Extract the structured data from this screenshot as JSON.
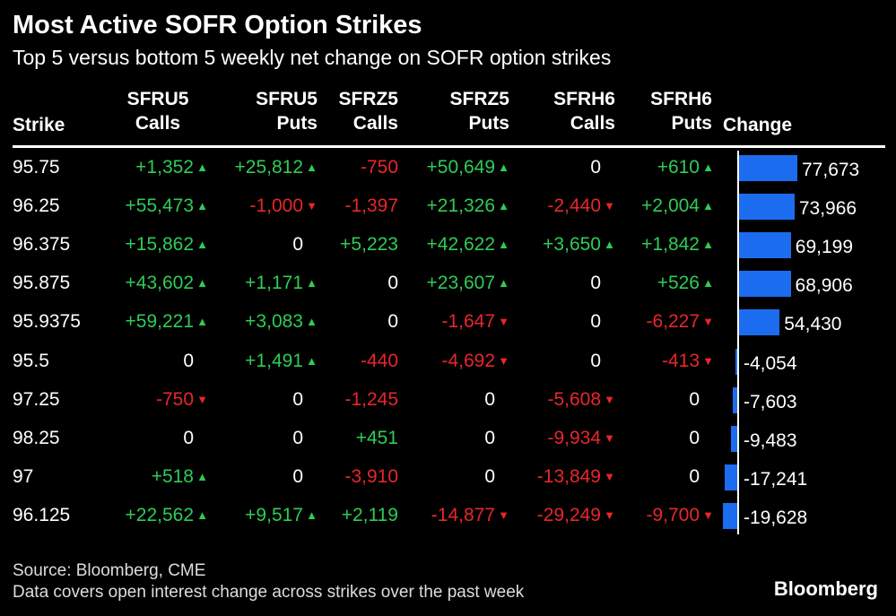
{
  "chart_data": {
    "type": "table",
    "title": "Most Active SOFR Option Strikes",
    "subtitle": "Top 5 versus bottom 5 weekly net change on SOFR option strikes",
    "columns": [
      {
        "line1": "",
        "line2": "Strike"
      },
      {
        "line1": "SFRU5",
        "line2": "Calls"
      },
      {
        "line1": "SFRU5",
        "line2": "Puts"
      },
      {
        "line1": "SFRZ5",
        "line2": "Calls"
      },
      {
        "line1": "SFRZ5",
        "line2": "Puts"
      },
      {
        "line1": "SFRH6",
        "line2": "Calls"
      },
      {
        "line1": "SFRH6",
        "line2": "Puts"
      },
      {
        "line1": "",
        "line2": "Change"
      }
    ],
    "rows": [
      {
        "strike": "95.75",
        "cells": [
          "+1,352",
          "+25,812",
          "-750",
          "+50,649",
          "0",
          "+610"
        ],
        "change": 77673,
        "change_label": "77,673"
      },
      {
        "strike": "96.25",
        "cells": [
          "+55,473",
          "-1,000",
          "-1,397",
          "+21,326",
          "-2,440",
          "+2,004"
        ],
        "change": 73966,
        "change_label": "73,966"
      },
      {
        "strike": "96.375",
        "cells": [
          "+15,862",
          "0",
          "+5,223",
          "+42,622",
          "+3,650",
          "+1,842"
        ],
        "change": 69199,
        "change_label": "69,199"
      },
      {
        "strike": "95.875",
        "cells": [
          "+43,602",
          "+1,171",
          "0",
          "+23,607",
          "0",
          "+526"
        ],
        "change": 68906,
        "change_label": "68,906"
      },
      {
        "strike": "95.9375",
        "cells": [
          "+59,221",
          "+3,083",
          "0",
          "-1,647",
          "0",
          "-6,227"
        ],
        "change": 54430,
        "change_label": "54,430"
      },
      {
        "strike": "95.5",
        "cells": [
          "0",
          "+1,491",
          "-440",
          "-4,692",
          "0",
          "-413"
        ],
        "change": -4054,
        "change_label": "-4,054"
      },
      {
        "strike": "97.25",
        "cells": [
          "-750",
          "0",
          "-1,245",
          "0",
          "-5,608",
          "0"
        ],
        "change": -7603,
        "change_label": "-7,603"
      },
      {
        "strike": "98.25",
        "cells": [
          "0",
          "0",
          "+451",
          "0",
          "-9,934",
          "0"
        ],
        "change": -9483,
        "change_label": "-9,483"
      },
      {
        "strike": "97",
        "cells": [
          "+518",
          "0",
          "-3,910",
          "0",
          "-13,849",
          "0"
        ],
        "change": -17241,
        "change_label": "-17,241"
      },
      {
        "strike": "96.125",
        "cells": [
          "+22,562",
          "+9,517",
          "+2,119",
          "-14,877",
          "-29,249",
          "-9,700"
        ],
        "change": -19628,
        "change_label": "-19,628"
      }
    ],
    "arrow_columns": [
      0,
      1,
      3,
      4,
      5
    ],
    "colors": {
      "positive": "#2ecc57",
      "negative": "#e8262b",
      "bar": "#1c6cf0"
    }
  },
  "footer": {
    "source": "Source: Bloomberg, CME",
    "note": "Data covers open interest change across strikes over the past week",
    "logo": "Bloomberg"
  }
}
